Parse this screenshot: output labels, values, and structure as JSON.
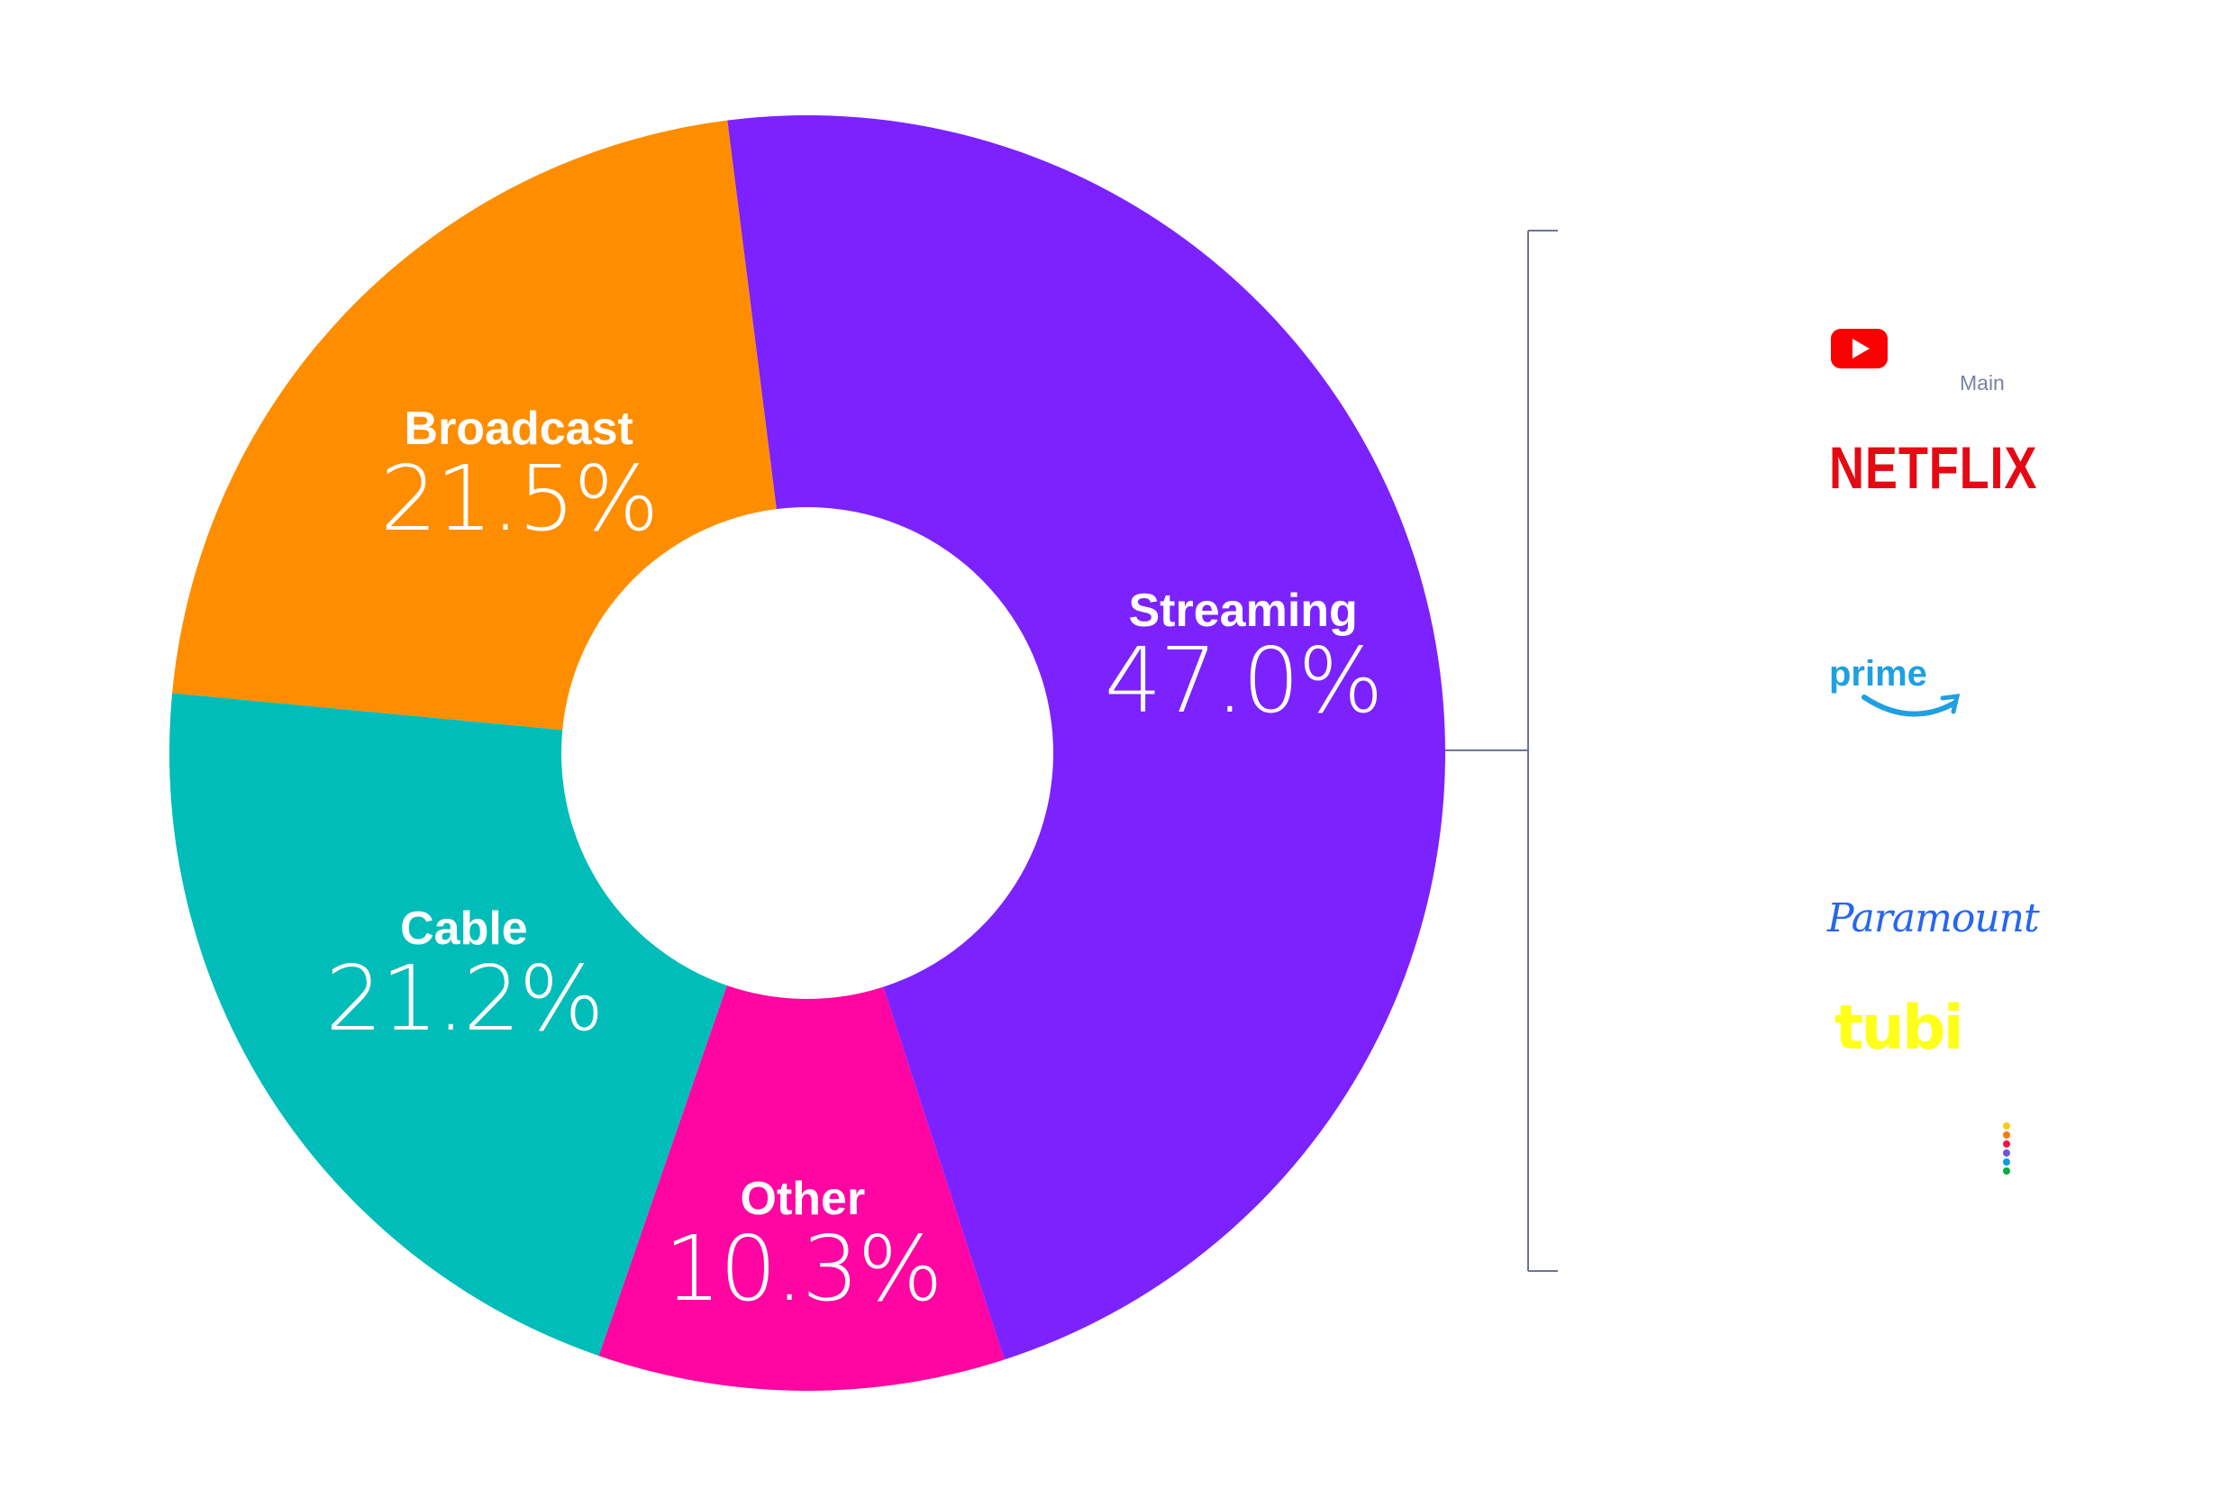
{
  "chart_data": {
    "type": "pie",
    "donut": true,
    "title": "",
    "start_angle_deg": -7.2,
    "slices": [
      {
        "label": "Streaming",
        "value": 47.0,
        "display": "47.0%",
        "color": "#7b22ff"
      },
      {
        "label": "Other",
        "value": 10.3,
        "display": "10.3%",
        "color": "#ff05a1"
      },
      {
        "label": "Cable",
        "value": 21.2,
        "display": "21.2%",
        "color": "#00bdb9"
      },
      {
        "label": "Broadcast",
        "value": 21.5,
        "display": "21.5%",
        "color": "#ff8d00"
      }
    ],
    "bracket_color": "#6e7399"
  },
  "streaming_breakdown": {
    "annotation": "Main",
    "logos": {
      "youtube": "YouTube",
      "netflix": "NETFLIX",
      "prime": "prime",
      "paramount": "Paramount",
      "tubi": "tubi",
      "peacock": "Peacock"
    },
    "peacock_dot_colors": [
      "#fcc919",
      "#f97a12",
      "#ee1643",
      "#6e55dc",
      "#069de0",
      "#05ac3f"
    ]
  }
}
